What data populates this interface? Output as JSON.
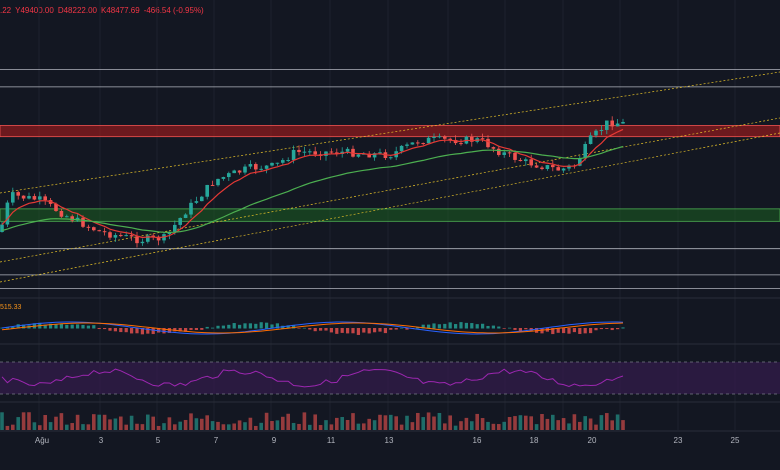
{
  "header": {
    "ohlc": [
      ".22",
      "Y49400.00",
      "D48222.00",
      "K48477.69",
      "-466.54 (-0.95%)"
    ]
  },
  "macd_value": "515.33",
  "colors": {
    "background": "#131722",
    "up": "#26a69a",
    "down": "#ef5350",
    "ema_fast": "#e53935",
    "ema_slow": "#4caf50",
    "resistance_zone": "#b71c1c",
    "support_zone": "#1b5e20",
    "rsi_band": "#311b49",
    "rsi_line": "#9c27b0",
    "macd_line": "#2962ff",
    "signal_line": "#ff6d00"
  },
  "chart_data": {
    "type": "candlestick",
    "x_tick_labels": [
      "Ağu",
      "3",
      "5",
      "7",
      "9",
      "11",
      "13",
      "16",
      "18",
      "20",
      "23",
      "25"
    ],
    "price_zones": [
      {
        "kind": "resistance",
        "from": 47200,
        "to": 47650
      },
      {
        "kind": "support",
        "from": 43800,
        "to": 44300
      }
    ],
    "horizontal_levels": [
      49900,
      49200,
      42700,
      41650,
      41100
    ],
    "indicators": [
      "EMA fast",
      "EMA slow",
      "MACD",
      "RSI",
      "Volume"
    ]
  }
}
